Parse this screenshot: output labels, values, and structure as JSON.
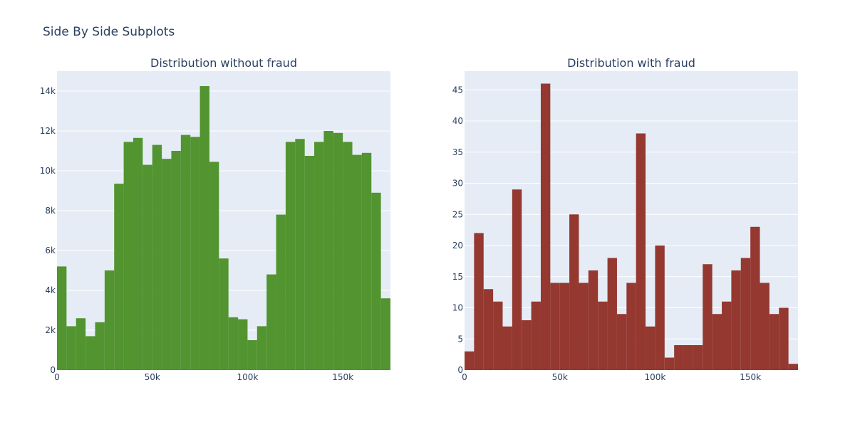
{
  "title": "Side By Side Subplots",
  "colors": {
    "plot_bg": "#e5ecf6",
    "grid": "#ffffff",
    "text": "#2a3f5f"
  },
  "chart_data": [
    {
      "type": "bar",
      "title": "Distribution without fraud",
      "color": "#52942f",
      "bin_width": 5000,
      "x_start": 0,
      "xlim": [
        0,
        175000
      ],
      "ylim": [
        0,
        15000
      ],
      "xtick_values": [
        0,
        50000,
        100000,
        150000
      ],
      "xtick_labels": [
        "0",
        "50k",
        "100k",
        "150k"
      ],
      "ytick_values": [
        0,
        2000,
        4000,
        6000,
        8000,
        10000,
        12000,
        14000
      ],
      "ytick_labels": [
        "0",
        "2k",
        "4k",
        "6k",
        "8k",
        "10k",
        "12k",
        "14k"
      ],
      "values": [
        5200,
        2200,
        2600,
        1700,
        2400,
        5000,
        9350,
        11450,
        11650,
        10300,
        11300,
        10600,
        11000,
        11800,
        11700,
        14250,
        10450,
        5600,
        2650,
        2550,
        1500,
        2200,
        4800,
        7800,
        11450,
        11600,
        10750,
        11450,
        12000,
        11900,
        11450,
        10800,
        10900,
        8900,
        3600
      ]
    },
    {
      "type": "bar",
      "title": "Distribution with fraud",
      "color": "#943830",
      "bin_width": 5000,
      "x_start": 0,
      "xlim": [
        0,
        175000
      ],
      "ylim": [
        0,
        48
      ],
      "xtick_values": [
        0,
        50000,
        100000,
        150000
      ],
      "xtick_labels": [
        "0",
        "50k",
        "100k",
        "150k"
      ],
      "ytick_values": [
        0,
        5,
        10,
        15,
        20,
        25,
        30,
        35,
        40,
        45
      ],
      "ytick_labels": [
        "0",
        "5",
        "10",
        "15",
        "20",
        "25",
        "30",
        "35",
        "40",
        "45"
      ],
      "values": [
        3,
        22,
        13,
        11,
        7,
        29,
        8,
        11,
        46,
        14,
        14,
        25,
        14,
        16,
        11,
        18,
        9,
        14,
        38,
        7,
        20,
        2,
        4,
        4,
        4,
        17,
        9,
        11,
        16,
        18,
        23,
        14,
        9,
        10,
        1
      ]
    }
  ]
}
